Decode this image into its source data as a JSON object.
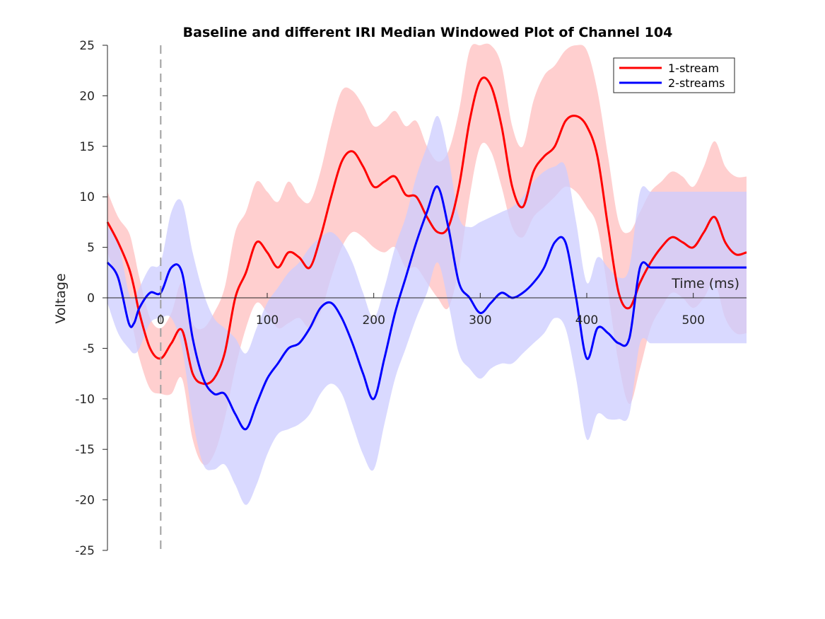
{
  "chart_data": {
    "type": "line",
    "title": "Baseline and different IRI Median Windowed Plot of Channel 104",
    "xlabel": "Time (ms)",
    "ylabel": "Voltage",
    "xlim": [
      -50,
      550
    ],
    "ylim": [
      -25,
      25
    ],
    "xticks": [
      0,
      100,
      200,
      300,
      400,
      500
    ],
    "yticks": [
      -25,
      -20,
      -15,
      -10,
      -5,
      0,
      5,
      10,
      15,
      20,
      25
    ],
    "event_marker_x": 0,
    "legend_position": "top-right",
    "grid": false,
    "x": [
      -50,
      -40,
      -30,
      -25,
      -20,
      -10,
      0,
      10,
      20,
      30,
      40,
      50,
      60,
      70,
      80,
      90,
      100,
      110,
      120,
      130,
      140,
      150,
      160,
      170,
      180,
      190,
      200,
      210,
      220,
      230,
      240,
      250,
      260,
      270,
      280,
      290,
      300,
      310,
      320,
      330,
      340,
      350,
      360,
      370,
      380,
      390,
      400,
      410,
      420,
      430,
      440,
      450,
      460,
      470,
      480,
      490,
      500,
      510,
      520,
      530,
      540,
      550
    ],
    "series": [
      {
        "name": "1-stream",
        "color": "#ff0000",
        "band_color": "#ffcccc",
        "values": [
          7.5,
          5.5,
          3.0,
          1.0,
          -1.5,
          -5.0,
          -6.0,
          -4.5,
          -3.2,
          -7.5,
          -8.5,
          -8.0,
          -5.5,
          0.0,
          2.5,
          5.5,
          4.5,
          3.0,
          4.5,
          4.0,
          3.0,
          6.0,
          10.0,
          13.5,
          14.5,
          13.0,
          11.0,
          11.5,
          12.0,
          10.2,
          10.0,
          8.0,
          6.5,
          7.0,
          11.0,
          17.5,
          21.5,
          21.0,
          17.0,
          11.0,
          9.0,
          12.5,
          14.0,
          15.0,
          17.5,
          18.0,
          17.0,
          14.0,
          7.0,
          0.5,
          -1.0,
          1.5,
          3.5,
          5.0,
          6.0,
          5.5,
          5.0,
          6.5,
          8.0,
          5.5,
          4.3,
          4.5
        ],
        "lower": [
          4.5,
          1.5,
          -1.5,
          -3.5,
          -6.0,
          -9.0,
          -9.5,
          -9.5,
          -8.0,
          -14.0,
          -16.5,
          -15.5,
          -12.0,
          -7.0,
          -3.0,
          -0.5,
          -1.5,
          -3.0,
          -2.5,
          -2.0,
          -3.0,
          -1.5,
          2.0,
          5.0,
          6.5,
          6.0,
          5.0,
          4.5,
          5.0,
          3.0,
          3.0,
          1.5,
          0.0,
          -1.0,
          3.0,
          10.0,
          15.0,
          14.5,
          11.0,
          7.0,
          6.0,
          8.0,
          9.0,
          10.0,
          11.0,
          10.5,
          9.0,
          7.0,
          0.5,
          -6.5,
          -10.5,
          -7.0,
          -3.0,
          -1.0,
          0.5,
          0.0,
          -1.0,
          0.0,
          1.5,
          -2.0,
          -3.5,
          -3.5
        ],
        "upper": [
          10.5,
          8.0,
          6.5,
          4.5,
          2.0,
          -2.0,
          -3.0,
          -1.5,
          1.5,
          -2.5,
          -3.0,
          -1.5,
          1.0,
          6.5,
          8.5,
          11.5,
          10.5,
          9.5,
          11.5,
          10.0,
          9.5,
          12.5,
          17.0,
          20.5,
          20.5,
          19.0,
          17.0,
          17.5,
          18.5,
          17.0,
          17.5,
          15.0,
          13.5,
          14.5,
          18.5,
          24.5,
          25.0,
          25.0,
          23.0,
          17.0,
          15.0,
          19.5,
          22.0,
          23.0,
          24.5,
          25.0,
          24.5,
          20.5,
          14.0,
          7.5,
          6.5,
          8.5,
          10.5,
          11.5,
          12.5,
          12.0,
          11.0,
          13.0,
          15.5,
          13.0,
          12.0,
          12.0
        ]
      },
      {
        "name": "2-streams",
        "color": "#0000ff",
        "band_color": "#ccccff",
        "values": [
          3.5,
          2.0,
          -2.5,
          -2.5,
          -1.0,
          0.5,
          0.5,
          3.0,
          2.5,
          -4.0,
          -8.0,
          -9.5,
          -9.5,
          -11.5,
          -13.0,
          -10.5,
          -8.0,
          -6.5,
          -5.0,
          -4.5,
          -3.0,
          -1.0,
          -0.5,
          -2.0,
          -4.5,
          -7.5,
          -10.0,
          -6.0,
          -1.5,
          2.0,
          5.5,
          8.5,
          11.0,
          7.0,
          1.5,
          0.0,
          -1.5,
          -0.5,
          0.5,
          0.0,
          0.5,
          1.5,
          3.0,
          5.5,
          5.5,
          0.0,
          -6.0,
          -3.0,
          -3.5,
          -4.5,
          -4.0,
          3.0,
          3.0,
          3.0,
          3.0,
          3.0,
          3.0,
          3.0,
          3.0,
          3.0,
          3.0,
          3.0
        ],
        "lower": [
          -0.5,
          -3.5,
          -5.0,
          -5.5,
          -5.0,
          -2.5,
          -2.0,
          -2.0,
          -5.0,
          -12.0,
          -16.5,
          -17.0,
          -16.5,
          -18.5,
          -20.5,
          -18.5,
          -15.5,
          -13.5,
          -13.0,
          -12.5,
          -11.5,
          -9.5,
          -8.5,
          -9.5,
          -12.5,
          -15.5,
          -17.0,
          -12.5,
          -8.0,
          -5.0,
          -2.0,
          0.5,
          3.5,
          -0.5,
          -5.5,
          -7.0,
          -8.0,
          -7.0,
          -6.5,
          -6.5,
          -5.5,
          -4.5,
          -3.5,
          -2.0,
          -3.0,
          -8.0,
          -14.0,
          -11.5,
          -12.0,
          -12.0,
          -11.5,
          -4.5,
          -4.5,
          -4.5,
          -4.5,
          -4.5,
          -4.5,
          -4.5,
          -4.5,
          -4.5,
          -4.5,
          -4.5
        ],
        "upper": [
          7.0,
          5.5,
          0.5,
          0.0,
          1.0,
          3.0,
          3.5,
          8.5,
          9.5,
          4.5,
          0.5,
          -2.0,
          -3.0,
          -4.0,
          -5.5,
          -3.0,
          -0.5,
          1.0,
          2.5,
          3.5,
          5.0,
          6.0,
          6.5,
          5.5,
          3.5,
          0.5,
          -2.0,
          1.0,
          5.0,
          8.0,
          12.0,
          15.0,
          18.0,
          14.0,
          8.0,
          7.0,
          7.5,
          8.0,
          8.5,
          9.0,
          10.0,
          11.5,
          12.5,
          13.0,
          13.0,
          7.5,
          1.5,
          4.0,
          3.0,
          2.0,
          3.0,
          10.5,
          10.5,
          10.5,
          10.5,
          10.5,
          10.5,
          10.5,
          10.5,
          10.5,
          10.5,
          10.5
        ]
      }
    ]
  }
}
